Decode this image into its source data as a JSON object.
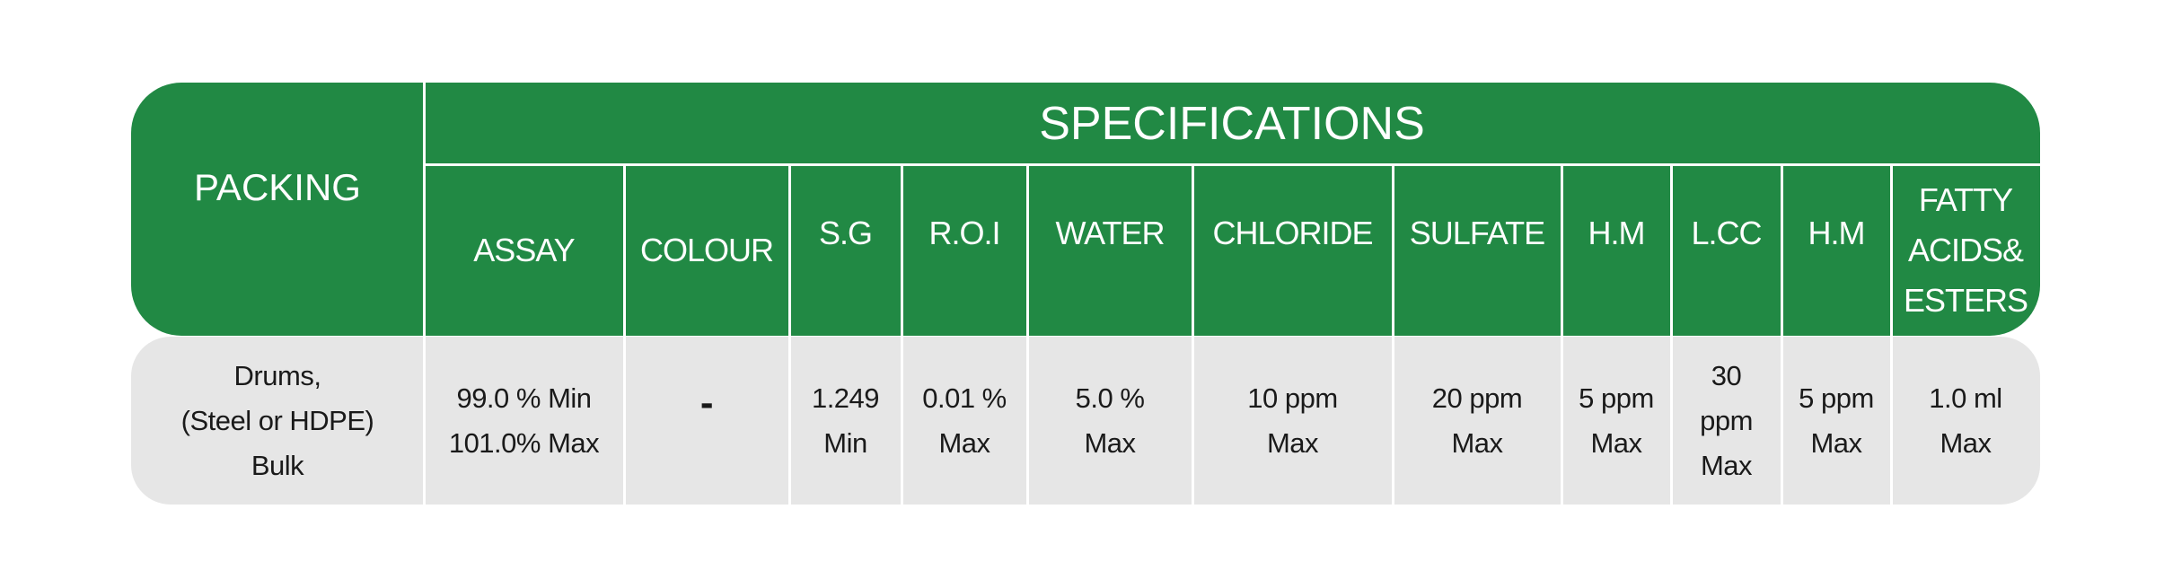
{
  "colors": {
    "header_green": "#218944",
    "body_gray": "#e6e6e6",
    "divider": "#ffffff"
  },
  "packing": {
    "header": "PACKING",
    "value_lines": [
      "Drums,",
      "(Steel or HDPE)",
      "Bulk"
    ]
  },
  "specifications": {
    "header": "SPECIFICATIONS",
    "columns": [
      {
        "header": [
          "ASSAY"
        ],
        "value": [
          "99.0 % Min",
          "101.0% Max"
        ]
      },
      {
        "header": [
          "COLOUR"
        ],
        "value": [
          "-"
        ]
      },
      {
        "header": [
          "S.G"
        ],
        "value": [
          "1.249",
          "Min"
        ]
      },
      {
        "header": [
          "R.O.I"
        ],
        "value": [
          "0.01 %",
          "Max"
        ]
      },
      {
        "header": [
          "WATER"
        ],
        "value": [
          "5.0 %",
          "Max"
        ]
      },
      {
        "header": [
          "CHLORIDE"
        ],
        "value": [
          "10 ppm",
          "Max"
        ]
      },
      {
        "header": [
          "SULFATE"
        ],
        "value": [
          "20 ppm",
          "Max"
        ]
      },
      {
        "header": [
          "H.M"
        ],
        "value": [
          "5 ppm",
          "Max"
        ]
      },
      {
        "header": [
          "L.CC"
        ],
        "value": [
          "30",
          "ppm",
          "Max"
        ]
      },
      {
        "header": [
          "H.M"
        ],
        "value": [
          "5 ppm",
          "Max"
        ]
      },
      {
        "header": [
          "FATTY",
          "ACIDS&",
          "ESTERS"
        ],
        "value": [
          "1.0 ml",
          "Max"
        ]
      }
    ]
  }
}
